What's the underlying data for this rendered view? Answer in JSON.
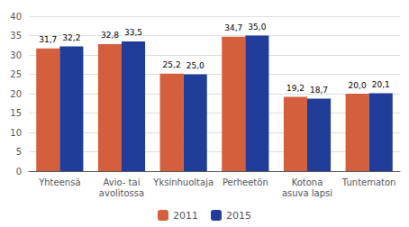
{
  "chart_data": {
    "type": "bar",
    "categories": [
      "Yhteensä",
      "Avio- tai\navolitossa",
      "Yksinhuoltaja",
      "Perheetön",
      "Kotona\nasuva lapsi",
      "Tuntematon"
    ],
    "series": [
      {
        "name": "2011",
        "color": "#d45f3c",
        "values": [
          31.7,
          32.8,
          25.2,
          34.7,
          19.2,
          20.0
        ],
        "value_labels": [
          "31,7",
          "32,8",
          "25,2",
          "34,7",
          "19,2",
          "20,0"
        ]
      },
      {
        "name": "2015",
        "color": "#1f3d99",
        "values": [
          32.2,
          33.5,
          25.0,
          35.0,
          18.7,
          20.1
        ],
        "value_labels": [
          "32,2",
          "33,5",
          "25,0",
          "35,0",
          "18,7",
          "20,1"
        ]
      }
    ],
    "ylim": [
      0,
      40
    ],
    "yticks": [
      0,
      5,
      10,
      15,
      20,
      25,
      30,
      35,
      40
    ],
    "grid": true,
    "legend": "bottom",
    "data_labels": true
  }
}
